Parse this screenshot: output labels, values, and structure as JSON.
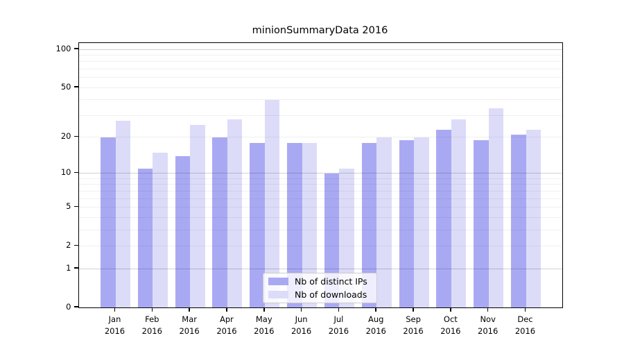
{
  "chart_data": {
    "type": "bar",
    "title": "minionSummaryData 2016",
    "categories": [
      "Jan",
      "Feb",
      "Mar",
      "Apr",
      "May",
      "Jun",
      "Jul",
      "Aug",
      "Sep",
      "Oct",
      "Nov",
      "Dec"
    ],
    "category_year": "2016",
    "series": [
      {
        "name": "Nb of distinct IPs",
        "color": "#a9a9f3",
        "values": [
          20,
          11,
          14,
          20,
          18,
          18,
          10,
          18,
          19,
          23,
          19,
          21
        ]
      },
      {
        "name": "Nb of downloads",
        "color": "#dcdcf9",
        "values": [
          27,
          15,
          25,
          28,
          40,
          18,
          11,
          20,
          20,
          28,
          34,
          23
        ]
      }
    ],
    "xlabel": "",
    "ylabel": "",
    "yscale": "log10(value+1)",
    "yticks": [
      0,
      1,
      2,
      5,
      10,
      20,
      50,
      100
    ],
    "ytick_labels": [
      "0",
      "1",
      "2",
      "5",
      "10",
      "20",
      "50",
      "100"
    ],
    "minor_grid_values": [
      2,
      3,
      4,
      5,
      6,
      7,
      8,
      9,
      20,
      30,
      40,
      50,
      60,
      70,
      80,
      90
    ],
    "major_grid_values": [
      1,
      10,
      100
    ],
    "ylim": [
      0,
      112
    ],
    "grid": true,
    "legend_position": "lower center"
  }
}
